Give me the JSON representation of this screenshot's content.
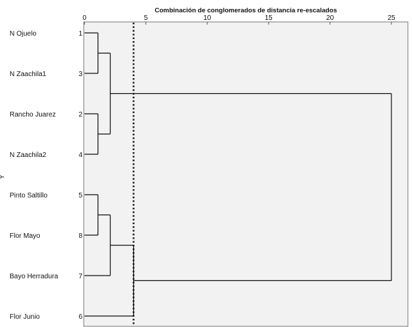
{
  "chart_data": {
    "type": "dendrogram",
    "title": "Combinación de conglomerados de distancia re-escalados",
    "ylabel": "Y",
    "xlim": [
      0,
      25
    ],
    "xticks": [
      0,
      5,
      10,
      15,
      20,
      25
    ],
    "cut_line": 4,
    "leaves": [
      {
        "name": "N Ojuelo",
        "id": "1"
      },
      {
        "name": "N Zaachila1",
        "id": "3"
      },
      {
        "name": "Rancho Juarez",
        "id": "2"
      },
      {
        "name": "N Zaachila2",
        "id": "4"
      },
      {
        "name": "Pinto Saltillo",
        "id": "5"
      },
      {
        "name": "Flor Mayo",
        "id": "8"
      },
      {
        "name": "Bayo Herradura",
        "id": "7"
      },
      {
        "name": "Flor Junio",
        "id": "6"
      }
    ],
    "merges": [
      {
        "a": "L0",
        "b": "L1",
        "height": 1.1,
        "id": "A"
      },
      {
        "a": "L2",
        "b": "L3",
        "height": 1.1,
        "id": "B"
      },
      {
        "a": "A",
        "b": "B",
        "height": 2.1,
        "id": "C"
      },
      {
        "a": "L4",
        "b": "L5",
        "height": 1.1,
        "id": "D"
      },
      {
        "a": "D",
        "b": "L6",
        "height": 2.1,
        "id": "E"
      },
      {
        "a": "E",
        "b": "L7",
        "height": 4.0,
        "id": "F"
      },
      {
        "a": "C",
        "b": "F",
        "height": 25,
        "id": "G"
      }
    ]
  }
}
